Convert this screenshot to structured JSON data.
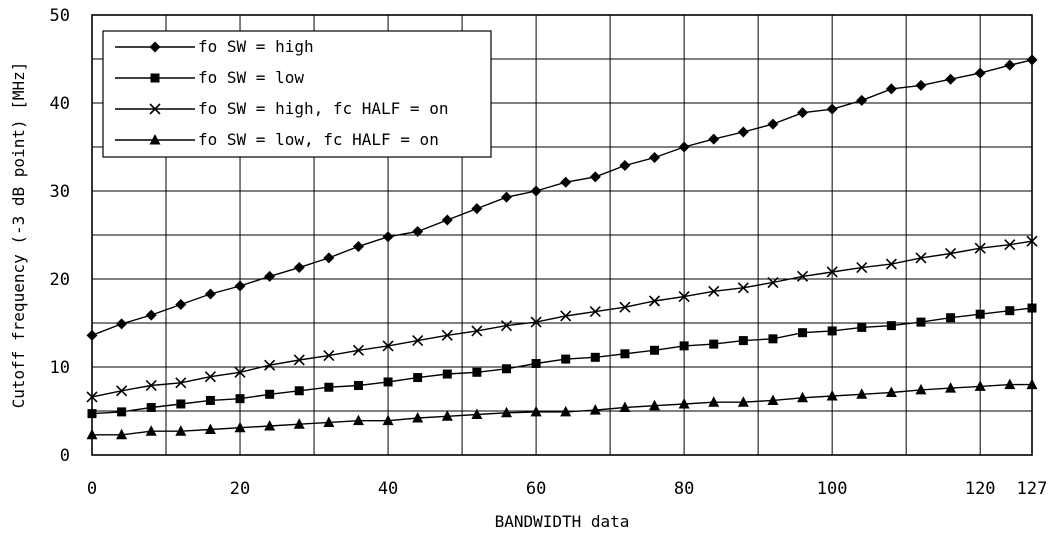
{
  "chart_data": {
    "type": "line",
    "title": "",
    "xlabel": "BANDWIDTH data",
    "ylabel": "Cutoff frequency (-3 dB point) [MHz]",
    "xlim": [
      0,
      127
    ],
    "ylim": [
      0,
      50
    ],
    "x_ticks": [
      0,
      20,
      40,
      60,
      80,
      100,
      120,
      127
    ],
    "x_tick_labels": [
      "0",
      "20",
      "40",
      "60",
      "80",
      "100",
      "120",
      "127"
    ],
    "y_ticks": [
      0,
      10,
      20,
      30,
      40,
      50
    ],
    "y_tick_labels": [
      "0",
      "10",
      "20",
      "30",
      "40",
      "50"
    ],
    "x_gridlines": [
      0,
      10,
      20,
      30,
      40,
      50,
      60,
      70,
      80,
      90,
      100,
      110,
      120,
      127
    ],
    "y_gridlines": [
      0,
      5,
      10,
      15,
      20,
      25,
      30,
      35,
      40,
      45,
      50
    ],
    "grid": true,
    "legend_position": "top-left",
    "x": [
      0,
      4,
      8,
      12,
      16,
      20,
      24,
      28,
      32,
      36,
      40,
      44,
      48,
      52,
      56,
      60,
      64,
      68,
      72,
      76,
      80,
      84,
      88,
      92,
      96,
      100,
      104,
      108,
      112,
      116,
      120,
      124,
      127
    ],
    "series": [
      {
        "name": "fo SW = high",
        "marker": "diamond",
        "values": [
          13.6,
          14.9,
          15.9,
          17.1,
          18.3,
          19.2,
          20.3,
          21.3,
          22.4,
          23.7,
          24.8,
          25.4,
          26.7,
          28.0,
          29.3,
          30.0,
          31.0,
          31.6,
          32.9,
          33.8,
          35.0,
          35.9,
          36.7,
          37.6,
          38.9,
          39.3,
          40.3,
          41.6,
          42.0,
          42.7,
          43.4,
          44.3,
          44.9
        ]
      },
      {
        "name": "fo SW = low",
        "marker": "square",
        "values": [
          4.7,
          4.9,
          5.4,
          5.8,
          6.2,
          6.4,
          6.9,
          7.3,
          7.7,
          7.9,
          8.3,
          8.8,
          9.2,
          9.4,
          9.8,
          10.4,
          10.9,
          11.1,
          11.5,
          11.9,
          12.4,
          12.6,
          13.0,
          13.2,
          13.9,
          14.1,
          14.5,
          14.7,
          15.1,
          15.6,
          16.0,
          16.4,
          16.7
        ]
      },
      {
        "name": "fo SW = high, fc HALF = on",
        "marker": "x",
        "values": [
          6.6,
          7.3,
          7.9,
          8.2,
          8.9,
          9.4,
          10.2,
          10.8,
          11.3,
          11.9,
          12.4,
          13.0,
          13.6,
          14.1,
          14.7,
          15.1,
          15.8,
          16.3,
          16.8,
          17.5,
          18.0,
          18.6,
          19.0,
          19.6,
          20.3,
          20.8,
          21.3,
          21.7,
          22.4,
          22.9,
          23.5,
          23.9,
          24.3
        ]
      },
      {
        "name": "fo SW = low, fc HALF = on",
        "marker": "triangle",
        "values": [
          2.3,
          2.3,
          2.7,
          2.7,
          2.9,
          3.1,
          3.3,
          3.5,
          3.7,
          3.9,
          3.9,
          4.2,
          4.4,
          4.6,
          4.8,
          4.9,
          4.9,
          5.1,
          5.4,
          5.6,
          5.8,
          6.0,
          6.0,
          6.2,
          6.5,
          6.7,
          6.9,
          7.1,
          7.4,
          7.6,
          7.8,
          8.0,
          8.0
        ]
      }
    ]
  }
}
